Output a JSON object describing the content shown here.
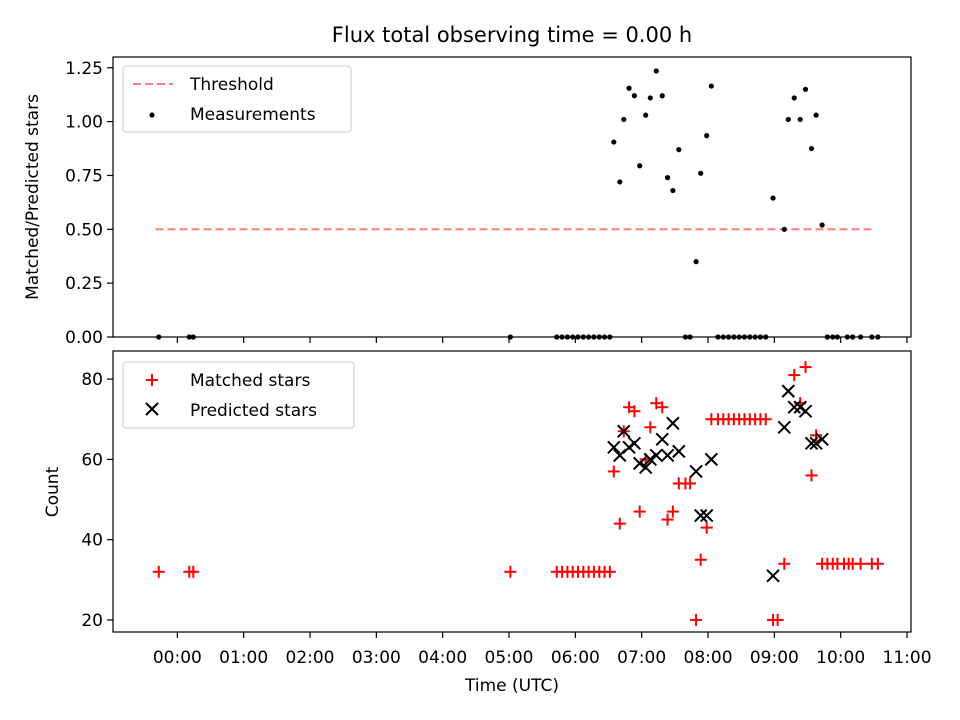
{
  "chart_data": [
    {
      "type": "scatter",
      "title": "Flux total observing time = 0.00 h",
      "xlabel": "",
      "ylabel": "Matched/Predicted stars",
      "xlim": [
        -0.97,
        11.06
      ],
      "ylim": [
        0,
        1.3
      ],
      "yticks": [
        0,
        0.25,
        0.5,
        0.75,
        1.0,
        1.25
      ],
      "ytick_labels": [
        "0.00",
        "0.25",
        "0.50",
        "0.75",
        "1.00",
        "1.25"
      ],
      "legend": "top-left",
      "threshold": {
        "name": "Threshold",
        "color": "#ff7f7f",
        "x": [
          -0.33,
          10.5
        ],
        "y": 0.5
      },
      "series": [
        {
          "name": "Measurements",
          "color": "#000000",
          "marker": "dot",
          "points": [
            [
              -0.28,
              0
            ],
            [
              0.18,
              0
            ],
            [
              0.24,
              0
            ],
            [
              5.02,
              0
            ],
            [
              5.72,
              0
            ],
            [
              5.8,
              0
            ],
            [
              5.88,
              0
            ],
            [
              5.96,
              0
            ],
            [
              6.04,
              0
            ],
            [
              6.12,
              0
            ],
            [
              6.2,
              0
            ],
            [
              6.28,
              0
            ],
            [
              6.36,
              0
            ],
            [
              6.44,
              0
            ],
            [
              6.52,
              0
            ],
            [
              6.58,
              0.905
            ],
            [
              6.67,
              0.72
            ],
            [
              6.73,
              1.01
            ],
            [
              6.81,
              1.155
            ],
            [
              6.89,
              1.12
            ],
            [
              6.97,
              0.795
            ],
            [
              7.06,
              1.03
            ],
            [
              7.13,
              1.11
            ],
            [
              7.22,
              1.235
            ],
            [
              7.31,
              1.12
            ],
            [
              7.39,
              0.74
            ],
            [
              7.47,
              0.68
            ],
            [
              7.56,
              0.87
            ],
            [
              7.66,
              0
            ],
            [
              7.73,
              0
            ],
            [
              7.82,
              0.35
            ],
            [
              7.89,
              0.76
            ],
            [
              7.98,
              0.935
            ],
            [
              8.05,
              1.165
            ],
            [
              8.15,
              0
            ],
            [
              8.23,
              0
            ],
            [
              8.31,
              0
            ],
            [
              8.39,
              0
            ],
            [
              8.47,
              0
            ],
            [
              8.55,
              0
            ],
            [
              8.63,
              0
            ],
            [
              8.71,
              0
            ],
            [
              8.79,
              0
            ],
            [
              8.87,
              0
            ],
            [
              8.98,
              0.645
            ],
            [
              9.15,
              0.5
            ],
            [
              9.21,
              1.01
            ],
            [
              9.3,
              1.11
            ],
            [
              9.39,
              1.01
            ],
            [
              9.47,
              1.15
            ],
            [
              9.56,
              0.875
            ],
            [
              9.63,
              1.03
            ],
            [
              9.72,
              0.52
            ],
            [
              9.8,
              0
            ],
            [
              9.88,
              0
            ],
            [
              9.95,
              0
            ],
            [
              10.1,
              0
            ],
            [
              10.18,
              0
            ],
            [
              10.3,
              0
            ],
            [
              10.47,
              0
            ],
            [
              10.56,
              0
            ]
          ]
        }
      ]
    },
    {
      "type": "scatter",
      "title": "",
      "xlabel": "Time (UTC)",
      "ylabel": "Count",
      "xlim": [
        -0.97,
        11.06
      ],
      "ylim": [
        17,
        87
      ],
      "yticks": [
        20,
        40,
        60,
        80
      ],
      "ytick_labels": [
        "20",
        "40",
        "60",
        "80"
      ],
      "xticks": [
        0,
        1,
        2,
        3,
        4,
        5,
        6,
        7,
        8,
        9,
        10,
        11
      ],
      "xtick_labels": [
        "00:00",
        "01:00",
        "02:00",
        "03:00",
        "04:00",
        "05:00",
        "06:00",
        "07:00",
        "08:00",
        "09:00",
        "10:00",
        "11:00"
      ],
      "legend": "top-left",
      "series": [
        {
          "name": "Matched stars",
          "color": "#ff0000",
          "marker": "plus",
          "points": [
            [
              -0.28,
              32
            ],
            [
              0.18,
              32
            ],
            [
              0.24,
              32
            ],
            [
              5.02,
              32
            ],
            [
              5.72,
              32
            ],
            [
              5.8,
              32
            ],
            [
              5.88,
              32
            ],
            [
              5.96,
              32
            ],
            [
              6.04,
              32
            ],
            [
              6.12,
              32
            ],
            [
              6.2,
              32
            ],
            [
              6.28,
              32
            ],
            [
              6.36,
              32
            ],
            [
              6.44,
              32
            ],
            [
              6.52,
              32
            ],
            [
              6.58,
              57
            ],
            [
              6.67,
              44
            ],
            [
              6.73,
              67
            ],
            [
              6.81,
              73
            ],
            [
              6.89,
              72
            ],
            [
              6.97,
              47
            ],
            [
              7.06,
              60
            ],
            [
              7.13,
              68
            ],
            [
              7.22,
              74
            ],
            [
              7.31,
              73
            ],
            [
              7.39,
              45
            ],
            [
              7.47,
              47
            ],
            [
              7.56,
              54
            ],
            [
              7.66,
              54
            ],
            [
              7.73,
              54
            ],
            [
              7.82,
              20
            ],
            [
              7.89,
              35
            ],
            [
              7.98,
              43
            ],
            [
              8.05,
              70
            ],
            [
              8.15,
              70
            ],
            [
              8.23,
              70
            ],
            [
              8.31,
              70
            ],
            [
              8.39,
              70
            ],
            [
              8.47,
              70
            ],
            [
              8.55,
              70
            ],
            [
              8.63,
              70
            ],
            [
              8.71,
              70
            ],
            [
              8.79,
              70
            ],
            [
              8.87,
              70
            ],
            [
              8.98,
              20
            ],
            [
              9.05,
              20
            ],
            [
              9.15,
              34
            ],
            [
              9.3,
              81
            ],
            [
              9.39,
              74
            ],
            [
              9.47,
              83
            ],
            [
              9.56,
              56
            ],
            [
              9.63,
              66
            ],
            [
              9.72,
              34
            ],
            [
              9.8,
              34
            ],
            [
              9.88,
              34
            ],
            [
              9.95,
              34
            ],
            [
              10.05,
              34
            ],
            [
              10.12,
              34
            ],
            [
              10.18,
              34
            ],
            [
              10.3,
              34
            ],
            [
              10.47,
              34
            ],
            [
              10.56,
              34
            ]
          ]
        },
        {
          "name": "Predicted stars",
          "color": "#000000",
          "marker": "x",
          "points": [
            [
              6.58,
              63
            ],
            [
              6.67,
              61
            ],
            [
              6.73,
              67
            ],
            [
              6.81,
              63
            ],
            [
              6.89,
              64
            ],
            [
              6.97,
              59
            ],
            [
              7.06,
              58
            ],
            [
              7.13,
              60
            ],
            [
              7.22,
              61
            ],
            [
              7.31,
              65
            ],
            [
              7.39,
              61
            ],
            [
              7.47,
              69
            ],
            [
              7.56,
              62
            ],
            [
              7.82,
              57
            ],
            [
              7.89,
              46
            ],
            [
              7.98,
              46
            ],
            [
              8.05,
              60
            ],
            [
              8.98,
              31
            ],
            [
              9.15,
              68
            ],
            [
              9.21,
              77
            ],
            [
              9.3,
              73
            ],
            [
              9.39,
              73
            ],
            [
              9.47,
              72
            ],
            [
              9.56,
              64
            ],
            [
              9.63,
              64
            ],
            [
              9.72,
              65
            ]
          ]
        }
      ]
    }
  ]
}
